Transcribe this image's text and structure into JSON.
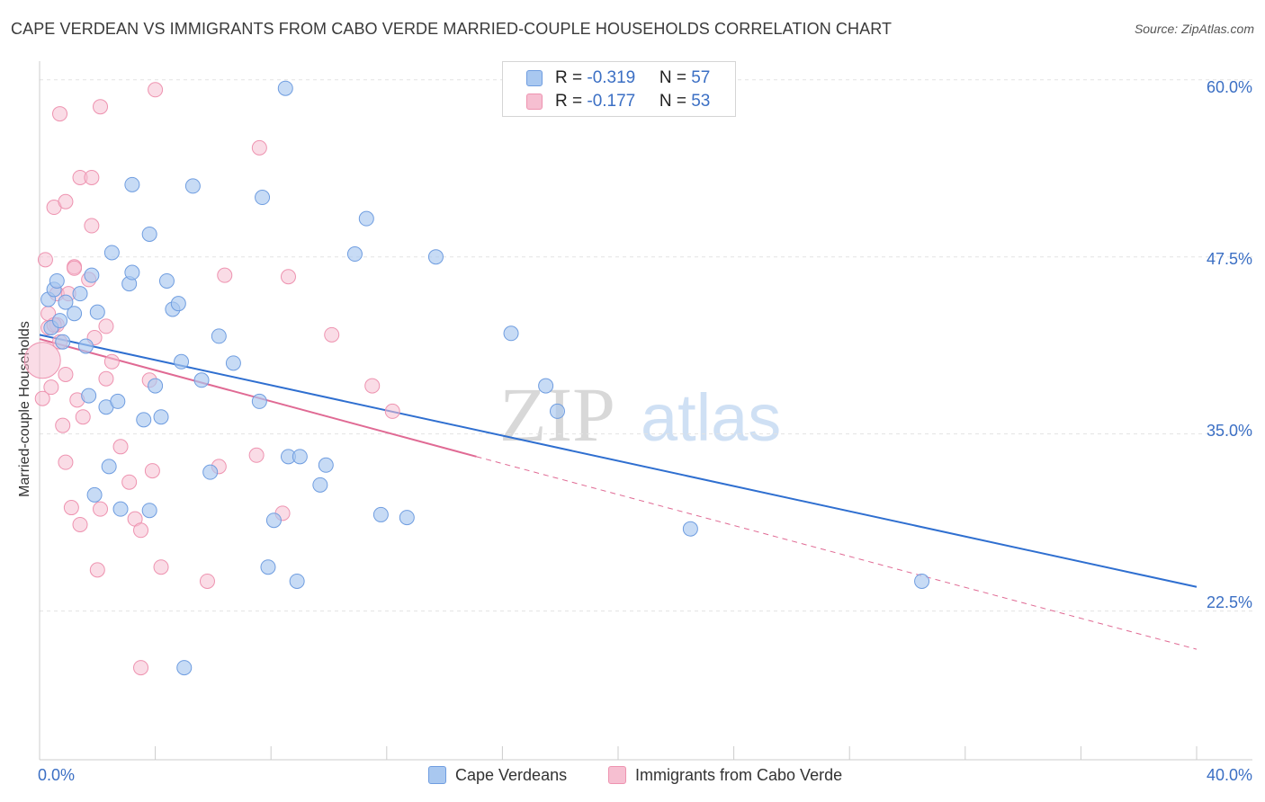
{
  "title": "CAPE VERDEAN VS IMMIGRANTS FROM CABO VERDE MARRIED-COUPLE HOUSEHOLDS CORRELATION CHART",
  "source": "Source: ZipAtlas.com",
  "watermark": {
    "part1": "ZIP",
    "part2": "atlas"
  },
  "legend": {
    "rows": [
      {
        "r_label": "R = ",
        "r_value": "-0.319",
        "n_label": "N = ",
        "n_value": "57"
      },
      {
        "r_label": "R = ",
        "r_value": "-0.177",
        "n_label": "N = ",
        "n_value": "53"
      }
    ]
  },
  "bottom_legend": {
    "series1": "Cape Verdeans",
    "series2": "Immigrants from Cabo Verde"
  },
  "colors": {
    "blue_fill": "#a9c8f0",
    "blue_stroke": "#6f9de0",
    "blue_line": "#2f6fd0",
    "pink_fill": "#f6bfd1",
    "pink_stroke": "#ee93b0",
    "pink_line": "#e06a94",
    "grid": "#e3e3e3",
    "axis": "#cccccc",
    "tick_text": "#3b6fc4"
  },
  "chart_data": {
    "type": "scatter",
    "title": "CAPE VERDEAN VS IMMIGRANTS FROM CABO VERDE MARRIED-COUPLE HOUSEHOLDS CORRELATION CHART",
    "xlabel": "",
    "ylabel": "Married-couple Households",
    "xlim": [
      0,
      40
    ],
    "ylim": [
      12,
      61
    ],
    "x_tick_labels": [
      "0.0%",
      "40.0%"
    ],
    "y_ticks": [
      22.5,
      35.0,
      47.5,
      60.0
    ],
    "y_tick_labels": [
      "22.5%",
      "35.0%",
      "47.5%",
      "60.0%"
    ],
    "legend_position": "top-center",
    "series": [
      {
        "name": "Cape Verdeans",
        "color": "#a9c8f0",
        "R": -0.319,
        "N": 57,
        "trend": {
          "x0": 0,
          "y0": 42.0,
          "x1": 40,
          "y1": 24.2
        },
        "points": [
          {
            "x": 0.3,
            "y": 44.5
          },
          {
            "x": 0.4,
            "y": 42.5
          },
          {
            "x": 0.5,
            "y": 45.2
          },
          {
            "x": 0.6,
            "y": 45.8
          },
          {
            "x": 0.7,
            "y": 43.0
          },
          {
            "x": 0.8,
            "y": 41.5
          },
          {
            "x": 0.9,
            "y": 44.3
          },
          {
            "x": 1.2,
            "y": 43.5
          },
          {
            "x": 1.4,
            "y": 44.9
          },
          {
            "x": 1.6,
            "y": 41.2
          },
          {
            "x": 1.7,
            "y": 37.7
          },
          {
            "x": 1.8,
            "y": 46.2
          },
          {
            "x": 1.9,
            "y": 30.7
          },
          {
            "x": 2.0,
            "y": 43.6
          },
          {
            "x": 2.3,
            "y": 36.9
          },
          {
            "x": 2.4,
            "y": 32.7
          },
          {
            "x": 2.5,
            "y": 47.8
          },
          {
            "x": 2.7,
            "y": 37.3
          },
          {
            "x": 2.8,
            "y": 29.7
          },
          {
            "x": 3.1,
            "y": 45.6
          },
          {
            "x": 3.2,
            "y": 46.4
          },
          {
            "x": 3.2,
            "y": 52.6
          },
          {
            "x": 3.6,
            "y": 36.0
          },
          {
            "x": 3.8,
            "y": 29.6
          },
          {
            "x": 3.8,
            "y": 49.1
          },
          {
            "x": 4.0,
            "y": 38.4
          },
          {
            "x": 4.2,
            "y": 36.2
          },
          {
            "x": 4.4,
            "y": 45.8
          },
          {
            "x": 4.6,
            "y": 43.8
          },
          {
            "x": 4.8,
            "y": 44.2
          },
          {
            "x": 4.9,
            "y": 40.1
          },
          {
            "x": 5.0,
            "y": 18.5
          },
          {
            "x": 5.3,
            "y": 52.5
          },
          {
            "x": 5.6,
            "y": 38.8
          },
          {
            "x": 5.9,
            "y": 32.3
          },
          {
            "x": 6.2,
            "y": 41.9
          },
          {
            "x": 6.7,
            "y": 40.0
          },
          {
            "x": 7.6,
            "y": 37.3
          },
          {
            "x": 7.7,
            "y": 51.7
          },
          {
            "x": 7.9,
            "y": 25.6
          },
          {
            "x": 8.1,
            "y": 28.9
          },
          {
            "x": 8.5,
            "y": 59.4
          },
          {
            "x": 8.6,
            "y": 33.4
          },
          {
            "x": 8.9,
            "y": 24.6
          },
          {
            "x": 9.0,
            "y": 33.4
          },
          {
            "x": 9.7,
            "y": 31.4
          },
          {
            "x": 9.9,
            "y": 32.8
          },
          {
            "x": 10.9,
            "y": 47.7
          },
          {
            "x": 11.3,
            "y": 50.2
          },
          {
            "x": 11.8,
            "y": 29.3
          },
          {
            "x": 12.7,
            "y": 29.1
          },
          {
            "x": 13.7,
            "y": 47.5
          },
          {
            "x": 16.3,
            "y": 42.1
          },
          {
            "x": 17.5,
            "y": 38.4
          },
          {
            "x": 17.9,
            "y": 36.6
          },
          {
            "x": 22.5,
            "y": 28.3
          },
          {
            "x": 30.5,
            "y": 24.6
          }
        ]
      },
      {
        "name": "Immigrants from Cabo Verde",
        "color": "#f6bfd1",
        "R": -0.177,
        "N": 53,
        "trend": {
          "x0": 0,
          "y0": 41.7,
          "x1": 15.1,
          "y1": 33.4
        },
        "trend_dashed": {
          "x0": 15.1,
          "y0": 33.4,
          "x1": 40,
          "y1": 19.8
        },
        "points": [
          {
            "x": 0.1,
            "y": 40.2,
            "big": true
          },
          {
            "x": 0.1,
            "y": 37.5
          },
          {
            "x": 0.2,
            "y": 47.3
          },
          {
            "x": 0.3,
            "y": 43.5
          },
          {
            "x": 0.3,
            "y": 42.5
          },
          {
            "x": 0.4,
            "y": 38.3
          },
          {
            "x": 0.5,
            "y": 51.0
          },
          {
            "x": 0.6,
            "y": 44.9
          },
          {
            "x": 0.6,
            "y": 42.7
          },
          {
            "x": 0.7,
            "y": 57.6
          },
          {
            "x": 0.7,
            "y": 41.5
          },
          {
            "x": 0.8,
            "y": 35.6
          },
          {
            "x": 0.9,
            "y": 51.4
          },
          {
            "x": 0.9,
            "y": 39.2
          },
          {
            "x": 0.9,
            "y": 33.0
          },
          {
            "x": 1.0,
            "y": 44.9
          },
          {
            "x": 1.1,
            "y": 29.8
          },
          {
            "x": 1.2,
            "y": 46.8
          },
          {
            "x": 1.3,
            "y": 37.4
          },
          {
            "x": 1.4,
            "y": 28.6
          },
          {
            "x": 1.4,
            "y": 53.1
          },
          {
            "x": 1.5,
            "y": 36.2
          },
          {
            "x": 1.7,
            "y": 45.9
          },
          {
            "x": 1.8,
            "y": 53.1
          },
          {
            "x": 1.8,
            "y": 49.7
          },
          {
            "x": 1.9,
            "y": 41.8
          },
          {
            "x": 2.0,
            "y": 25.4
          },
          {
            "x": 2.1,
            "y": 58.1
          },
          {
            "x": 2.1,
            "y": 29.7
          },
          {
            "x": 2.3,
            "y": 38.9
          },
          {
            "x": 2.3,
            "y": 42.6
          },
          {
            "x": 2.5,
            "y": 40.1
          },
          {
            "x": 2.8,
            "y": 34.1
          },
          {
            "x": 3.1,
            "y": 31.6
          },
          {
            "x": 3.3,
            "y": 29.0
          },
          {
            "x": 3.5,
            "y": 18.5
          },
          {
            "x": 3.5,
            "y": 28.2
          },
          {
            "x": 3.8,
            "y": 38.8
          },
          {
            "x": 3.9,
            "y": 32.4
          },
          {
            "x": 4.0,
            "y": 59.3
          },
          {
            "x": 4.2,
            "y": 25.6
          },
          {
            "x": 5.8,
            "y": 24.6
          },
          {
            "x": 6.2,
            "y": 32.7
          },
          {
            "x": 6.4,
            "y": 46.2
          },
          {
            "x": 7.5,
            "y": 33.5
          },
          {
            "x": 7.6,
            "y": 55.2
          },
          {
            "x": 8.4,
            "y": 29.4
          },
          {
            "x": 8.6,
            "y": 46.1
          },
          {
            "x": 10.1,
            "y": 42.0
          },
          {
            "x": 11.5,
            "y": 38.4
          },
          {
            "x": 12.2,
            "y": 36.6
          },
          {
            "x": 1.2,
            "y": 46.7
          },
          {
            "x": 0.5,
            "y": 42.7
          }
        ]
      }
    ]
  }
}
